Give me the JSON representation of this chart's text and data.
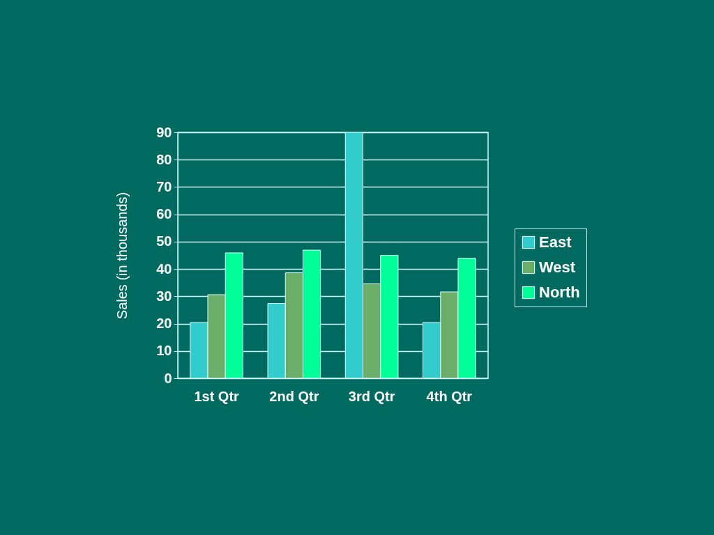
{
  "chart_data": {
    "type": "bar",
    "ylabel": "Sales (in thousands)",
    "categories": [
      "1st Qtr",
      "2nd Qtr",
      "3rd Qtr",
      "4th Qtr"
    ],
    "series": [
      {
        "name": "East",
        "color": "#33cccc",
        "values": [
          20.4,
          27.4,
          90,
          20.4
        ]
      },
      {
        "name": "West",
        "color": "#6aae6a",
        "values": [
          30.6,
          38.6,
          34.6,
          31.6
        ]
      },
      {
        "name": "North",
        "color": "#00ff99",
        "values": [
          45.9,
          46.9,
          45,
          43.9
        ]
      }
    ],
    "ylim": [
      0,
      90
    ],
    "yticks": [
      0,
      10,
      20,
      30,
      40,
      50,
      60,
      70,
      80,
      90
    ],
    "grid": "y",
    "legend": "right"
  }
}
